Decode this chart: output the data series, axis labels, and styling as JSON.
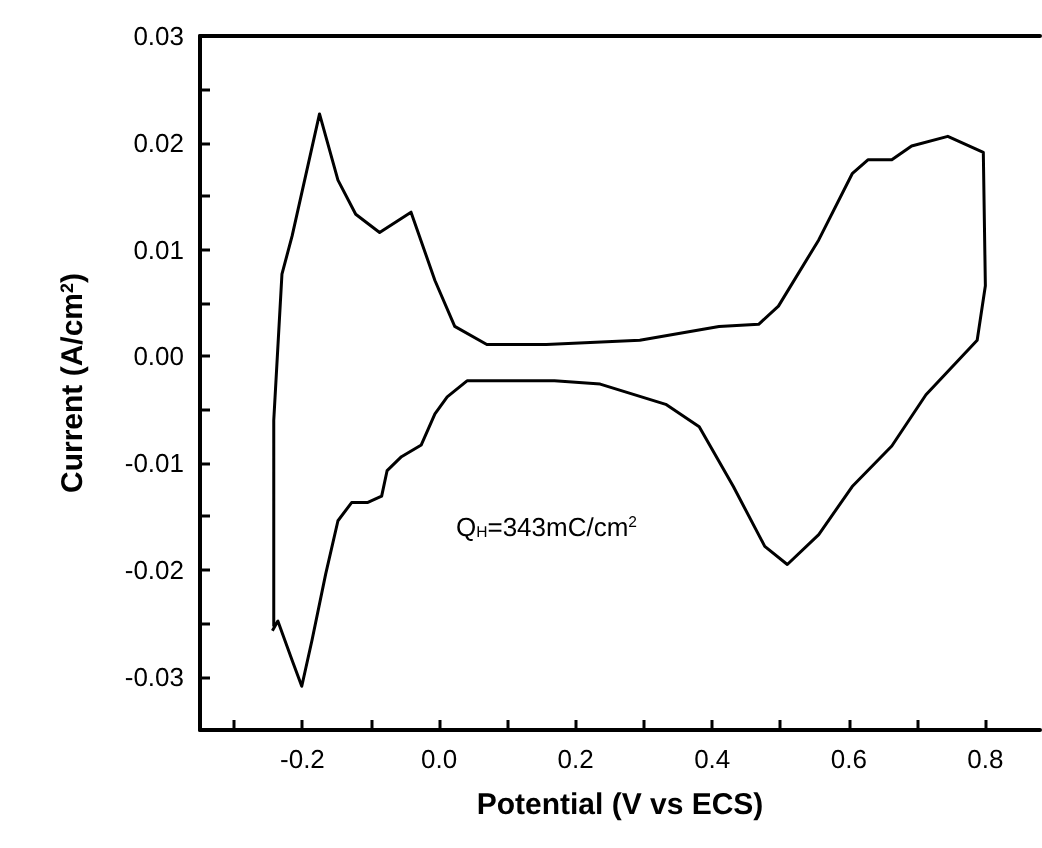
{
  "chart_data": {
    "type": "line",
    "xlabel": "Potential (V vs ECS)",
    "ylabel": "Current (A/cm$^{2}$)",
    "annotations": [
      "Q$_{H}$=343mC/cm$^{2}$"
    ],
    "x": [
      -0.242,
      -0.242,
      -0.23,
      -0.215,
      -0.175,
      -0.148,
      -0.122,
      -0.087,
      -0.041,
      -0.006,
      0.023,
      0.07,
      0.157,
      0.294,
      0.41,
      0.468,
      0.497,
      0.556,
      0.605,
      0.628,
      0.663,
      0.692,
      0.745,
      0.797,
      0.8,
      0.788,
      0.713,
      0.663,
      0.605,
      0.556,
      0.51,
      0.477,
      0.431,
      0.381,
      0.332,
      0.236,
      0.169,
      0.041,
      0.012,
      -0.006,
      -0.026,
      -0.055,
      -0.076,
      -0.084,
      -0.105,
      -0.128,
      -0.148,
      -0.166,
      -0.186,
      -0.201,
      -0.215,
      -0.236,
      -0.244
    ],
    "values": [
      -0.0253,
      -0.006,
      0.0077,
      0.0113,
      0.0227,
      0.0165,
      0.0133,
      0.0116,
      0.0135,
      0.0071,
      0.0028,
      0.0011,
      0.0011,
      0.0015,
      0.0028,
      0.003,
      0.0047,
      0.0109,
      0.0171,
      0.0184,
      0.0184,
      0.0197,
      0.0206,
      0.0191,
      0.0066,
      0.0015,
      -0.0036,
      -0.0084,
      -0.0122,
      -0.0167,
      -0.0195,
      -0.0178,
      -0.0122,
      -0.0066,
      -0.0045,
      -0.0026,
      -0.0023,
      -0.0023,
      -0.0038,
      -0.0054,
      -0.0083,
      -0.0094,
      -0.0107,
      -0.0131,
      -0.0137,
      -0.0137,
      -0.0154,
      -0.0204,
      -0.0266,
      -0.0309,
      -0.0285,
      -0.0248,
      -0.0257
    ],
    "color": "#000000",
    "marker": "none",
    "line_style": "solid",
    "grid": false,
    "xlim": [
      -0.35,
      0.88
    ],
    "xticks": [
      {
        "value": -0.3,
        "label": null
      },
      {
        "value": -0.2,
        "label": "-0.2"
      },
      {
        "value": -0.1,
        "label": null
      },
      {
        "value": 0,
        "label": "0.0"
      },
      {
        "value": 0.1,
        "label": null
      },
      {
        "value": 0.2,
        "label": "0.2"
      },
      {
        "value": 0.3,
        "label": null
      },
      {
        "value": 0.4,
        "label": "0.4"
      },
      {
        "value": 0.5,
        "label": null
      },
      {
        "value": 0.6,
        "label": "0.6"
      },
      {
        "value": 0.7,
        "label": null
      },
      {
        "value": 0.8,
        "label": "0.8"
      }
    ],
    "ylim": [
      -0.035,
      0.03
    ],
    "yticks": [
      {
        "value": -0.03,
        "label": "-0.03"
      },
      {
        "value": -0.025,
        "label": null
      },
      {
        "value": -0.02,
        "label": "-0.02"
      },
      {
        "value": -0.015,
        "label": null
      },
      {
        "value": -0.01,
        "label": "-0.01"
      },
      {
        "value": -0.005,
        "label": null
      },
      {
        "value": 0,
        "label": "0.00"
      },
      {
        "value": 0.005,
        "label": null
      },
      {
        "value": 0.01,
        "label": "0.01"
      },
      {
        "value": 0.015,
        "label": null
      },
      {
        "value": 0.02,
        "label": "0.02"
      },
      {
        "value": 0.025,
        "label": null
      },
      {
        "value": 0.03,
        "label": "0.03"
      }
    ]
  }
}
